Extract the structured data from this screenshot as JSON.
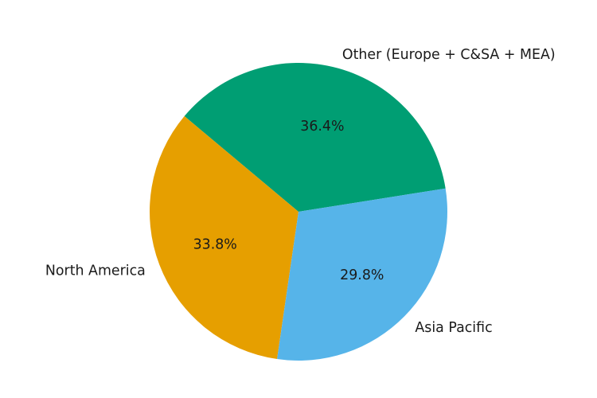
{
  "chart_data": {
    "type": "pie",
    "title": "",
    "slices": [
      {
        "label": "Other (Europe + C&SA + MEA)",
        "value": 36.4,
        "pct_label": "36.4%",
        "color": "#009E73"
      },
      {
        "label": "North America",
        "value": 33.8,
        "pct_label": "33.8%",
        "color": "#E69F00"
      },
      {
        "label": "Asia Pacific",
        "value": 29.8,
        "pct_label": "29.8%",
        "color": "#56B4E9"
      }
    ],
    "start_angle_deg": 9,
    "counterclockwise": true,
    "label_distance": 1.1,
    "pct_distance": 0.6,
    "legend": "none",
    "background_color": "#ffffff",
    "text_color": "#1a1a1a"
  }
}
